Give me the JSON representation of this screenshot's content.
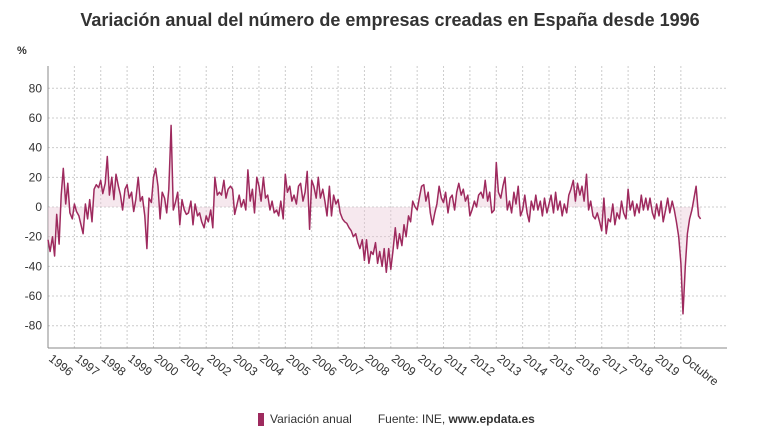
{
  "chart_data": {
    "type": "line",
    "title": "Variación anual del número de empresas creadas en España desde 1996",
    "ylabel": "%",
    "ylim": [
      -95,
      95
    ],
    "yticks": [
      80,
      60,
      40,
      20,
      0,
      -20,
      -40,
      -60,
      -80
    ],
    "xlim": [
      1996,
      2021.75
    ],
    "xticks": [
      "1996",
      "1997",
      "1998",
      "1999",
      "2000",
      "2001",
      "2002",
      "2003",
      "2004",
      "2005",
      "2006",
      "2007",
      "2008",
      "2009",
      "2010",
      "2011",
      "2012",
      "2013",
      "2014",
      "2015",
      "2016",
      "2017",
      "2018",
      "2019",
      "Octubre"
    ],
    "grid": true,
    "legend_position": "bottom",
    "series": [
      {
        "name": "Variación anual",
        "color": "#9e2a5e",
        "points": [
          [
            1996.0,
            -22
          ],
          [
            1996.08,
            -30
          ],
          [
            1996.17,
            -20
          ],
          [
            1996.25,
            -33
          ],
          [
            1996.33,
            -5
          ],
          [
            1996.42,
            -25
          ],
          [
            1996.5,
            8
          ],
          [
            1996.58,
            26
          ],
          [
            1996.67,
            2
          ],
          [
            1996.75,
            16
          ],
          [
            1996.83,
            -4
          ],
          [
            1996.92,
            -8
          ],
          [
            1997.0,
            2
          ],
          [
            1997.08,
            -3
          ],
          [
            1997.17,
            -6
          ],
          [
            1997.25,
            -12
          ],
          [
            1997.33,
            -18
          ],
          [
            1997.42,
            2
          ],
          [
            1997.5,
            -8
          ],
          [
            1997.58,
            5
          ],
          [
            1997.67,
            -10
          ],
          [
            1997.75,
            12
          ],
          [
            1997.83,
            15
          ],
          [
            1997.92,
            13
          ],
          [
            1998.0,
            18
          ],
          [
            1998.08,
            9
          ],
          [
            1998.17,
            16
          ],
          [
            1998.25,
            34
          ],
          [
            1998.33,
            8
          ],
          [
            1998.42,
            20
          ],
          [
            1998.5,
            5
          ],
          [
            1998.58,
            22
          ],
          [
            1998.67,
            14
          ],
          [
            1998.75,
            8
          ],
          [
            1998.83,
            -2
          ],
          [
            1998.92,
            12
          ],
          [
            1999.0,
            15
          ],
          [
            1999.08,
            6
          ],
          [
            1999.17,
            10
          ],
          [
            1999.25,
            -3
          ],
          [
            1999.33,
            5
          ],
          [
            1999.42,
            20
          ],
          [
            1999.5,
            4
          ],
          [
            1999.58,
            7
          ],
          [
            1999.67,
            -6
          ],
          [
            1999.75,
            -28
          ],
          [
            1999.83,
            6
          ],
          [
            1999.92,
            3
          ],
          [
            2000.0,
            20
          ],
          [
            2000.08,
            26
          ],
          [
            2000.17,
            14
          ],
          [
            2000.25,
            -8
          ],
          [
            2000.33,
            10
          ],
          [
            2000.42,
            6
          ],
          [
            2000.5,
            -4
          ],
          [
            2000.58,
            12
          ],
          [
            2000.67,
            55
          ],
          [
            2000.75,
            -2
          ],
          [
            2000.83,
            3
          ],
          [
            2000.92,
            10
          ],
          [
            2001.0,
            -12
          ],
          [
            2001.08,
            5
          ],
          [
            2001.17,
            -2
          ],
          [
            2001.25,
            -5
          ],
          [
            2001.33,
            -4
          ],
          [
            2001.42,
            4
          ],
          [
            2001.5,
            -12
          ],
          [
            2001.58,
            2
          ],
          [
            2001.67,
            -6
          ],
          [
            2001.75,
            -4
          ],
          [
            2001.83,
            -10
          ],
          [
            2001.92,
            -14
          ],
          [
            2002.0,
            -6
          ],
          [
            2002.08,
            -10
          ],
          [
            2002.17,
            -2
          ],
          [
            2002.25,
            -14
          ],
          [
            2002.33,
            20
          ],
          [
            2002.42,
            8
          ],
          [
            2002.5,
            10
          ],
          [
            2002.58,
            8
          ],
          [
            2002.67,
            18
          ],
          [
            2002.75,
            6
          ],
          [
            2002.83,
            12
          ],
          [
            2002.92,
            14
          ],
          [
            2003.0,
            12
          ],
          [
            2003.08,
            -5
          ],
          [
            2003.17,
            2
          ],
          [
            2003.25,
            8
          ],
          [
            2003.33,
            0
          ],
          [
            2003.42,
            5
          ],
          [
            2003.5,
            -2
          ],
          [
            2003.58,
            25
          ],
          [
            2003.67,
            4
          ],
          [
            2003.75,
            12
          ],
          [
            2003.83,
            -4
          ],
          [
            2003.92,
            20
          ],
          [
            2004.0,
            14
          ],
          [
            2004.08,
            4
          ],
          [
            2004.17,
            20
          ],
          [
            2004.25,
            6
          ],
          [
            2004.33,
            8
          ],
          [
            2004.42,
            -2
          ],
          [
            2004.5,
            4
          ],
          [
            2004.58,
            -4
          ],
          [
            2004.67,
            -2
          ],
          [
            2004.75,
            -6
          ],
          [
            2004.83,
            4
          ],
          [
            2004.92,
            -8
          ],
          [
            2005.0,
            22
          ],
          [
            2005.08,
            10
          ],
          [
            2005.17,
            14
          ],
          [
            2005.25,
            4
          ],
          [
            2005.33,
            8
          ],
          [
            2005.42,
            2
          ],
          [
            2005.5,
            14
          ],
          [
            2005.58,
            16
          ],
          [
            2005.67,
            4
          ],
          [
            2005.75,
            10
          ],
          [
            2005.83,
            24
          ],
          [
            2005.92,
            -15
          ],
          [
            2006.0,
            18
          ],
          [
            2006.08,
            14
          ],
          [
            2006.17,
            6
          ],
          [
            2006.25,
            20
          ],
          [
            2006.33,
            6
          ],
          [
            2006.42,
            12
          ],
          [
            2006.5,
            4
          ],
          [
            2006.58,
            -6
          ],
          [
            2006.67,
            14
          ],
          [
            2006.75,
            -6
          ],
          [
            2006.83,
            8
          ],
          [
            2006.92,
            2
          ],
          [
            2007.0,
            5
          ],
          [
            2007.08,
            -4
          ],
          [
            2007.17,
            -8
          ],
          [
            2007.25,
            -10
          ],
          [
            2007.33,
            -11
          ],
          [
            2007.42,
            -14
          ],
          [
            2007.5,
            -16
          ],
          [
            2007.58,
            -20
          ],
          [
            2007.67,
            -18
          ],
          [
            2007.75,
            -24
          ],
          [
            2007.83,
            -28
          ],
          [
            2007.92,
            -22
          ],
          [
            2008.0,
            -36
          ],
          [
            2008.08,
            -22
          ],
          [
            2008.17,
            -38
          ],
          [
            2008.25,
            -30
          ],
          [
            2008.33,
            -32
          ],
          [
            2008.42,
            -24
          ],
          [
            2008.5,
            -38
          ],
          [
            2008.58,
            -30
          ],
          [
            2008.67,
            -40
          ],
          [
            2008.75,
            -28
          ],
          [
            2008.83,
            -44
          ],
          [
            2008.92,
            -28
          ],
          [
            2009.0,
            -42
          ],
          [
            2009.08,
            -30
          ],
          [
            2009.17,
            -14
          ],
          [
            2009.25,
            -28
          ],
          [
            2009.33,
            -18
          ],
          [
            2009.42,
            -26
          ],
          [
            2009.5,
            -12
          ],
          [
            2009.58,
            -20
          ],
          [
            2009.67,
            -6
          ],
          [
            2009.75,
            -10
          ],
          [
            2009.83,
            4
          ],
          [
            2009.92,
            0
          ],
          [
            2010.0,
            -2
          ],
          [
            2010.08,
            6
          ],
          [
            2010.17,
            14
          ],
          [
            2010.25,
            15
          ],
          [
            2010.33,
            4
          ],
          [
            2010.42,
            10
          ],
          [
            2010.5,
            -4
          ],
          [
            2010.58,
            -12
          ],
          [
            2010.67,
            -4
          ],
          [
            2010.75,
            2
          ],
          [
            2010.83,
            14
          ],
          [
            2010.92,
            6
          ],
          [
            2011.0,
            3
          ],
          [
            2011.08,
            10
          ],
          [
            2011.17,
            -4
          ],
          [
            2011.25,
            6
          ],
          [
            2011.33,
            8
          ],
          [
            2011.42,
            -2
          ],
          [
            2011.5,
            10
          ],
          [
            2011.58,
            16
          ],
          [
            2011.67,
            8
          ],
          [
            2011.75,
            12
          ],
          [
            2011.83,
            4
          ],
          [
            2011.92,
            8
          ],
          [
            2012.0,
            -6
          ],
          [
            2012.08,
            -2
          ],
          [
            2012.17,
            4
          ],
          [
            2012.25,
            0
          ],
          [
            2012.33,
            8
          ],
          [
            2012.42,
            10
          ],
          [
            2012.5,
            6
          ],
          [
            2012.58,
            18
          ],
          [
            2012.67,
            4
          ],
          [
            2012.75,
            10
          ],
          [
            2012.83,
            -4
          ],
          [
            2012.92,
            -2
          ],
          [
            2013.0,
            30
          ],
          [
            2013.08,
            10
          ],
          [
            2013.17,
            6
          ],
          [
            2013.25,
            14
          ],
          [
            2013.33,
            20
          ],
          [
            2013.42,
            -2
          ],
          [
            2013.5,
            4
          ],
          [
            2013.58,
            -4
          ],
          [
            2013.67,
            10
          ],
          [
            2013.75,
            2
          ],
          [
            2013.83,
            14
          ],
          [
            2013.92,
            -6
          ],
          [
            2014.0,
            -2
          ],
          [
            2014.08,
            8
          ],
          [
            2014.17,
            -4
          ],
          [
            2014.25,
            -10
          ],
          [
            2014.33,
            4
          ],
          [
            2014.42,
            -2
          ],
          [
            2014.5,
            8
          ],
          [
            2014.58,
            -2
          ],
          [
            2014.67,
            4
          ],
          [
            2014.75,
            -6
          ],
          [
            2014.83,
            6
          ],
          [
            2014.92,
            -4
          ],
          [
            2015.0,
            2
          ],
          [
            2015.08,
            8
          ],
          [
            2015.17,
            -4
          ],
          [
            2015.25,
            10
          ],
          [
            2015.33,
            -2
          ],
          [
            2015.42,
            4
          ],
          [
            2015.5,
            -6
          ],
          [
            2015.58,
            2
          ],
          [
            2015.67,
            -4
          ],
          [
            2015.75,
            8
          ],
          [
            2015.83,
            12
          ],
          [
            2015.92,
            18
          ],
          [
            2016.0,
            4
          ],
          [
            2016.08,
            16
          ],
          [
            2016.17,
            8
          ],
          [
            2016.25,
            14
          ],
          [
            2016.33,
            4
          ],
          [
            2016.42,
            22
          ],
          [
            2016.5,
            -2
          ],
          [
            2016.58,
            4
          ],
          [
            2016.67,
            -6
          ],
          [
            2016.75,
            -8
          ],
          [
            2016.83,
            -4
          ],
          [
            2016.92,
            -10
          ],
          [
            2017.0,
            -16
          ],
          [
            2017.08,
            6
          ],
          [
            2017.17,
            -18
          ],
          [
            2017.25,
            -8
          ],
          [
            2017.33,
            -10
          ],
          [
            2017.42,
            2
          ],
          [
            2017.5,
            -12
          ],
          [
            2017.58,
            -4
          ],
          [
            2017.67,
            -8
          ],
          [
            2017.75,
            4
          ],
          [
            2017.83,
            -4
          ],
          [
            2017.92,
            -8
          ],
          [
            2018.0,
            12
          ],
          [
            2018.08,
            -2
          ],
          [
            2018.17,
            4
          ],
          [
            2018.25,
            -6
          ],
          [
            2018.33,
            2
          ],
          [
            2018.42,
            -4
          ],
          [
            2018.5,
            8
          ],
          [
            2018.58,
            -2
          ],
          [
            2018.67,
            6
          ],
          [
            2018.75,
            -2
          ],
          [
            2018.83,
            6
          ],
          [
            2018.92,
            -4
          ],
          [
            2019.0,
            -8
          ],
          [
            2019.08,
            2
          ],
          [
            2019.17,
            -6
          ],
          [
            2019.25,
            4
          ],
          [
            2019.33,
            -10
          ],
          [
            2019.42,
            -2
          ],
          [
            2019.5,
            6
          ],
          [
            2019.58,
            -4
          ],
          [
            2019.67,
            4
          ],
          [
            2019.75,
            -2
          ],
          [
            2019.83,
            -10
          ],
          [
            2019.92,
            -20
          ],
          [
            2020.0,
            -38
          ],
          [
            2020.08,
            -72
          ],
          [
            2020.17,
            -40
          ],
          [
            2020.25,
            -18
          ],
          [
            2020.33,
            -8
          ],
          [
            2020.42,
            -2
          ],
          [
            2020.5,
            6
          ],
          [
            2020.58,
            14
          ],
          [
            2020.67,
            -6
          ],
          [
            2020.75,
            -8
          ]
        ]
      }
    ]
  },
  "legend": {
    "series_label": "Variación anual",
    "source_prefix": "Fuente: INE, ",
    "source_site": "www.epdata.es"
  }
}
